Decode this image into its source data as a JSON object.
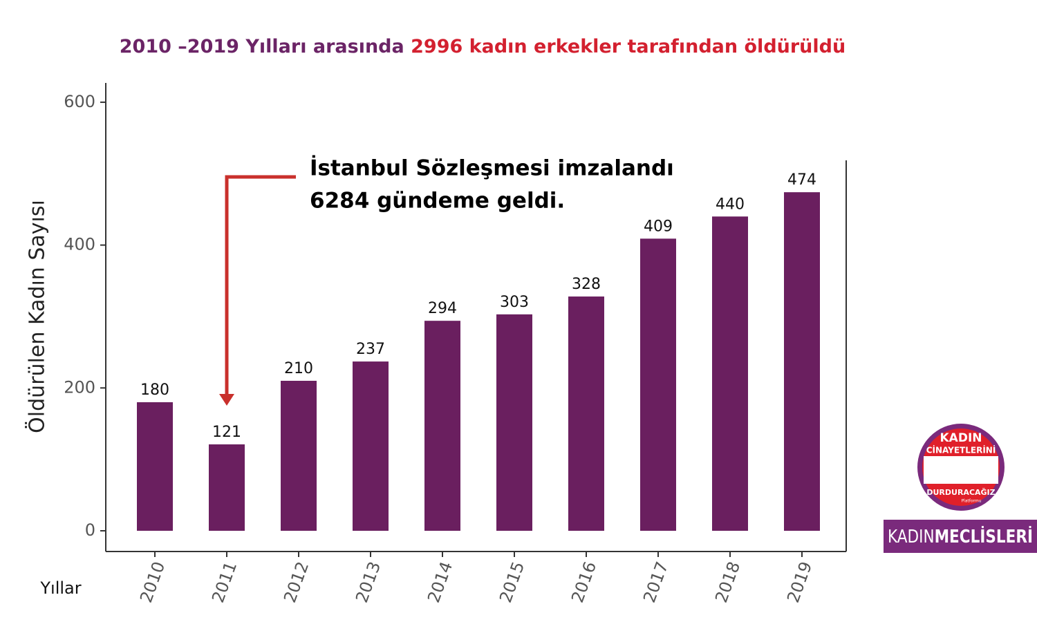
{
  "chart_data": {
    "type": "bar",
    "title_parts": [
      "2010 –2019 Yılları arasında",
      "2996 kadın erkekler tarafından öldürüldü"
    ],
    "title_colors": [
      "#6b2466",
      "#d3202f"
    ],
    "y_label": "Öldürülen Kadın Sayısı",
    "x_label": "Yıllar",
    "annotation": [
      "İstanbul Sözleşmesi imzalandı",
      "6284 gündeme geldi."
    ],
    "categories": [
      "2010",
      "2011",
      "2012",
      "2013",
      "2014",
      "2015",
      "2016",
      "2017",
      "2018",
      "2019"
    ],
    "values": [
      180,
      121,
      210,
      237,
      294,
      303,
      328,
      409,
      440,
      474
    ],
    "color": "#6a1f5f",
    "ylim": [
      -29,
      627
    ],
    "yticks": [
      0,
      200,
      400,
      600
    ]
  },
  "branding": {
    "badge": [
      "KADIN",
      "CİNAYETLERİNİ",
      "DURDURACAĞIZ",
      "Platformu"
    ],
    "banner": [
      "KADIN",
      "MECLİSLERİ"
    ]
  }
}
